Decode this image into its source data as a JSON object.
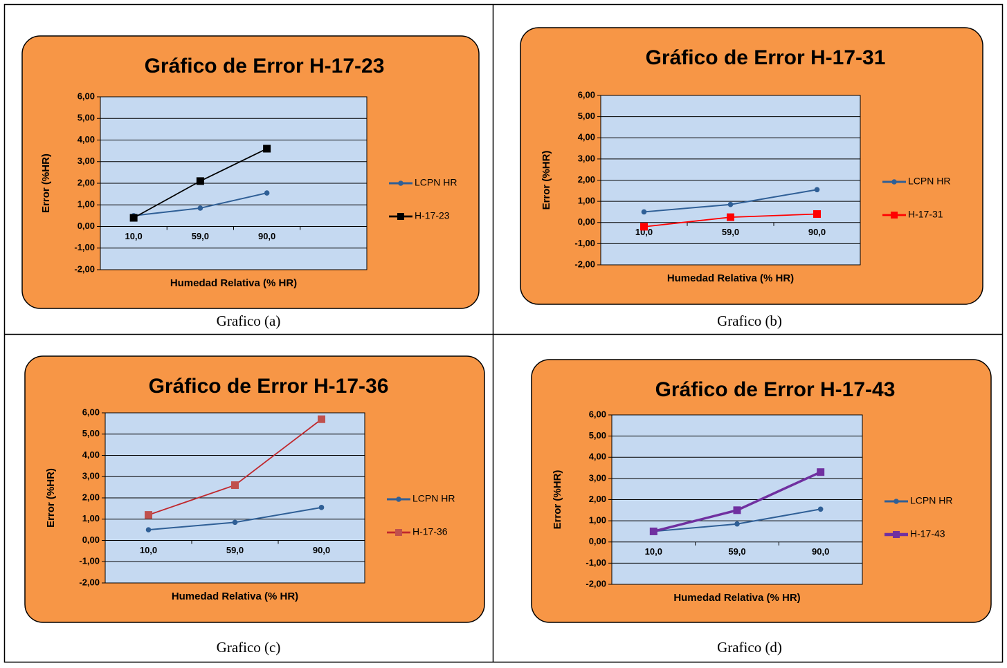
{
  "chart_data": [
    {
      "type": "line",
      "title": "Gráfico de Error H-17-23",
      "caption": "Grafico (a)",
      "xlabel": "Humedad Relativa (% HR)",
      "ylabel": "Error (%HR)",
      "categories": [
        "10,0",
        "59,0",
        "90,0",
        null
      ],
      "ylim": [
        -2,
        6
      ],
      "yticks": [
        {
          "value": -2,
          "label": "-2,00"
        },
        {
          "value": -1,
          "label": "-1,00"
        },
        {
          "value": 0,
          "label": "0,00"
        },
        {
          "value": 1,
          "label": "1,00"
        },
        {
          "value": 2,
          "label": "2,00"
        },
        {
          "value": 3,
          "label": "3,00"
        },
        {
          "value": 4,
          "label": "4,00"
        },
        {
          "value": 5,
          "label": "5,00"
        },
        {
          "value": 6,
          "label": "6,00"
        }
      ],
      "grid": true,
      "series": [
        {
          "name": "LCPN HR",
          "color": "#2f5f96",
          "marker": "circle",
          "values": [
            0.5,
            0.85,
            1.55,
            null
          ]
        },
        {
          "name": "H-17-23",
          "color": "#000000",
          "marker": "square",
          "values": [
            0.4,
            2.1,
            3.6,
            null
          ]
        }
      ]
    },
    {
      "type": "line",
      "title": "Gráfico de Error H-17-31",
      "caption": "Grafico (b)",
      "xlabel": "Humedad Relativa (% HR)",
      "ylabel": "Error (%HR)",
      "categories": [
        "10,0",
        "59,0",
        "90,0"
      ],
      "ylim": [
        -2,
        6
      ],
      "yticks": [
        {
          "value": -2,
          "label": "-2,00"
        },
        {
          "value": -1,
          "label": "-1,00"
        },
        {
          "value": 0,
          "label": "0,00"
        },
        {
          "value": 1,
          "label": "1,00"
        },
        {
          "value": 2,
          "label": "2,00"
        },
        {
          "value": 3,
          "label": "3,00"
        },
        {
          "value": 4,
          "label": "4,00"
        },
        {
          "value": 5,
          "label": "5,00"
        },
        {
          "value": 6,
          "label": "6,00"
        }
      ],
      "grid": true,
      "series": [
        {
          "name": "LCPN HR",
          "color": "#2f5f96",
          "marker": "circle",
          "values": [
            0.5,
            0.85,
            1.55
          ]
        },
        {
          "name": "H-17-31",
          "color": "#ff0000",
          "marker": "square",
          "values": [
            -0.2,
            0.25,
            0.4
          ]
        }
      ]
    },
    {
      "type": "line",
      "title": "Gráfico de Error H-17-36",
      "caption": "Grafico (c)",
      "xlabel": "Humedad Relativa (% HR)",
      "ylabel": "Error (%HR)",
      "categories": [
        "10,0",
        "59,0",
        "90,0"
      ],
      "ylim": [
        -2,
        6
      ],
      "yticks": [
        {
          "value": -2,
          "label": "-2,00"
        },
        {
          "value": -1,
          "label": "-1,00"
        },
        {
          "value": 0,
          "label": "0,00"
        },
        {
          "value": 1,
          "label": "1,00"
        },
        {
          "value": 2,
          "label": "2,00"
        },
        {
          "value": 3,
          "label": "3,00"
        },
        {
          "value": 4,
          "label": "4,00"
        },
        {
          "value": 5,
          "label": "5,00"
        },
        {
          "value": 6,
          "label": "6,00"
        }
      ],
      "grid": true,
      "series": [
        {
          "name": "LCPN HR",
          "color": "#2f5f96",
          "marker": "circle",
          "values": [
            0.5,
            0.85,
            1.55
          ]
        },
        {
          "name": "H-17-36",
          "color": "#c0282d",
          "marker": "square",
          "values": [
            1.2,
            2.6,
            5.7
          ]
        }
      ]
    },
    {
      "type": "line",
      "title": "Gráfico de Error H-17-43",
      "caption": "Grafico (d)",
      "xlabel": "Humedad Relativa (% HR)",
      "ylabel": "Error (%HR)",
      "categories": [
        "10,0",
        "59,0",
        "90,0"
      ],
      "ylim": [
        -2,
        6
      ],
      "yticks": [
        {
          "value": -2,
          "label": "-2,00"
        },
        {
          "value": -1,
          "label": "-1,00"
        },
        {
          "value": 0,
          "label": "0,00"
        },
        {
          "value": 1,
          "label": "1,00"
        },
        {
          "value": 2,
          "label": "2,00"
        },
        {
          "value": 3,
          "label": "3,00"
        },
        {
          "value": 4,
          "label": "4,00"
        },
        {
          "value": 5,
          "label": "5,00"
        },
        {
          "value": 6,
          "label": "6,00"
        }
      ],
      "grid": true,
      "series": [
        {
          "name": "LCPN HR",
          "color": "#2f5f96",
          "marker": "circle",
          "values": [
            0.5,
            0.85,
            1.55
          ]
        },
        {
          "name": "H-17-43",
          "color": "#7030a0",
          "marker": "square",
          "values": [
            0.5,
            1.5,
            3.3
          ]
        }
      ]
    }
  ]
}
